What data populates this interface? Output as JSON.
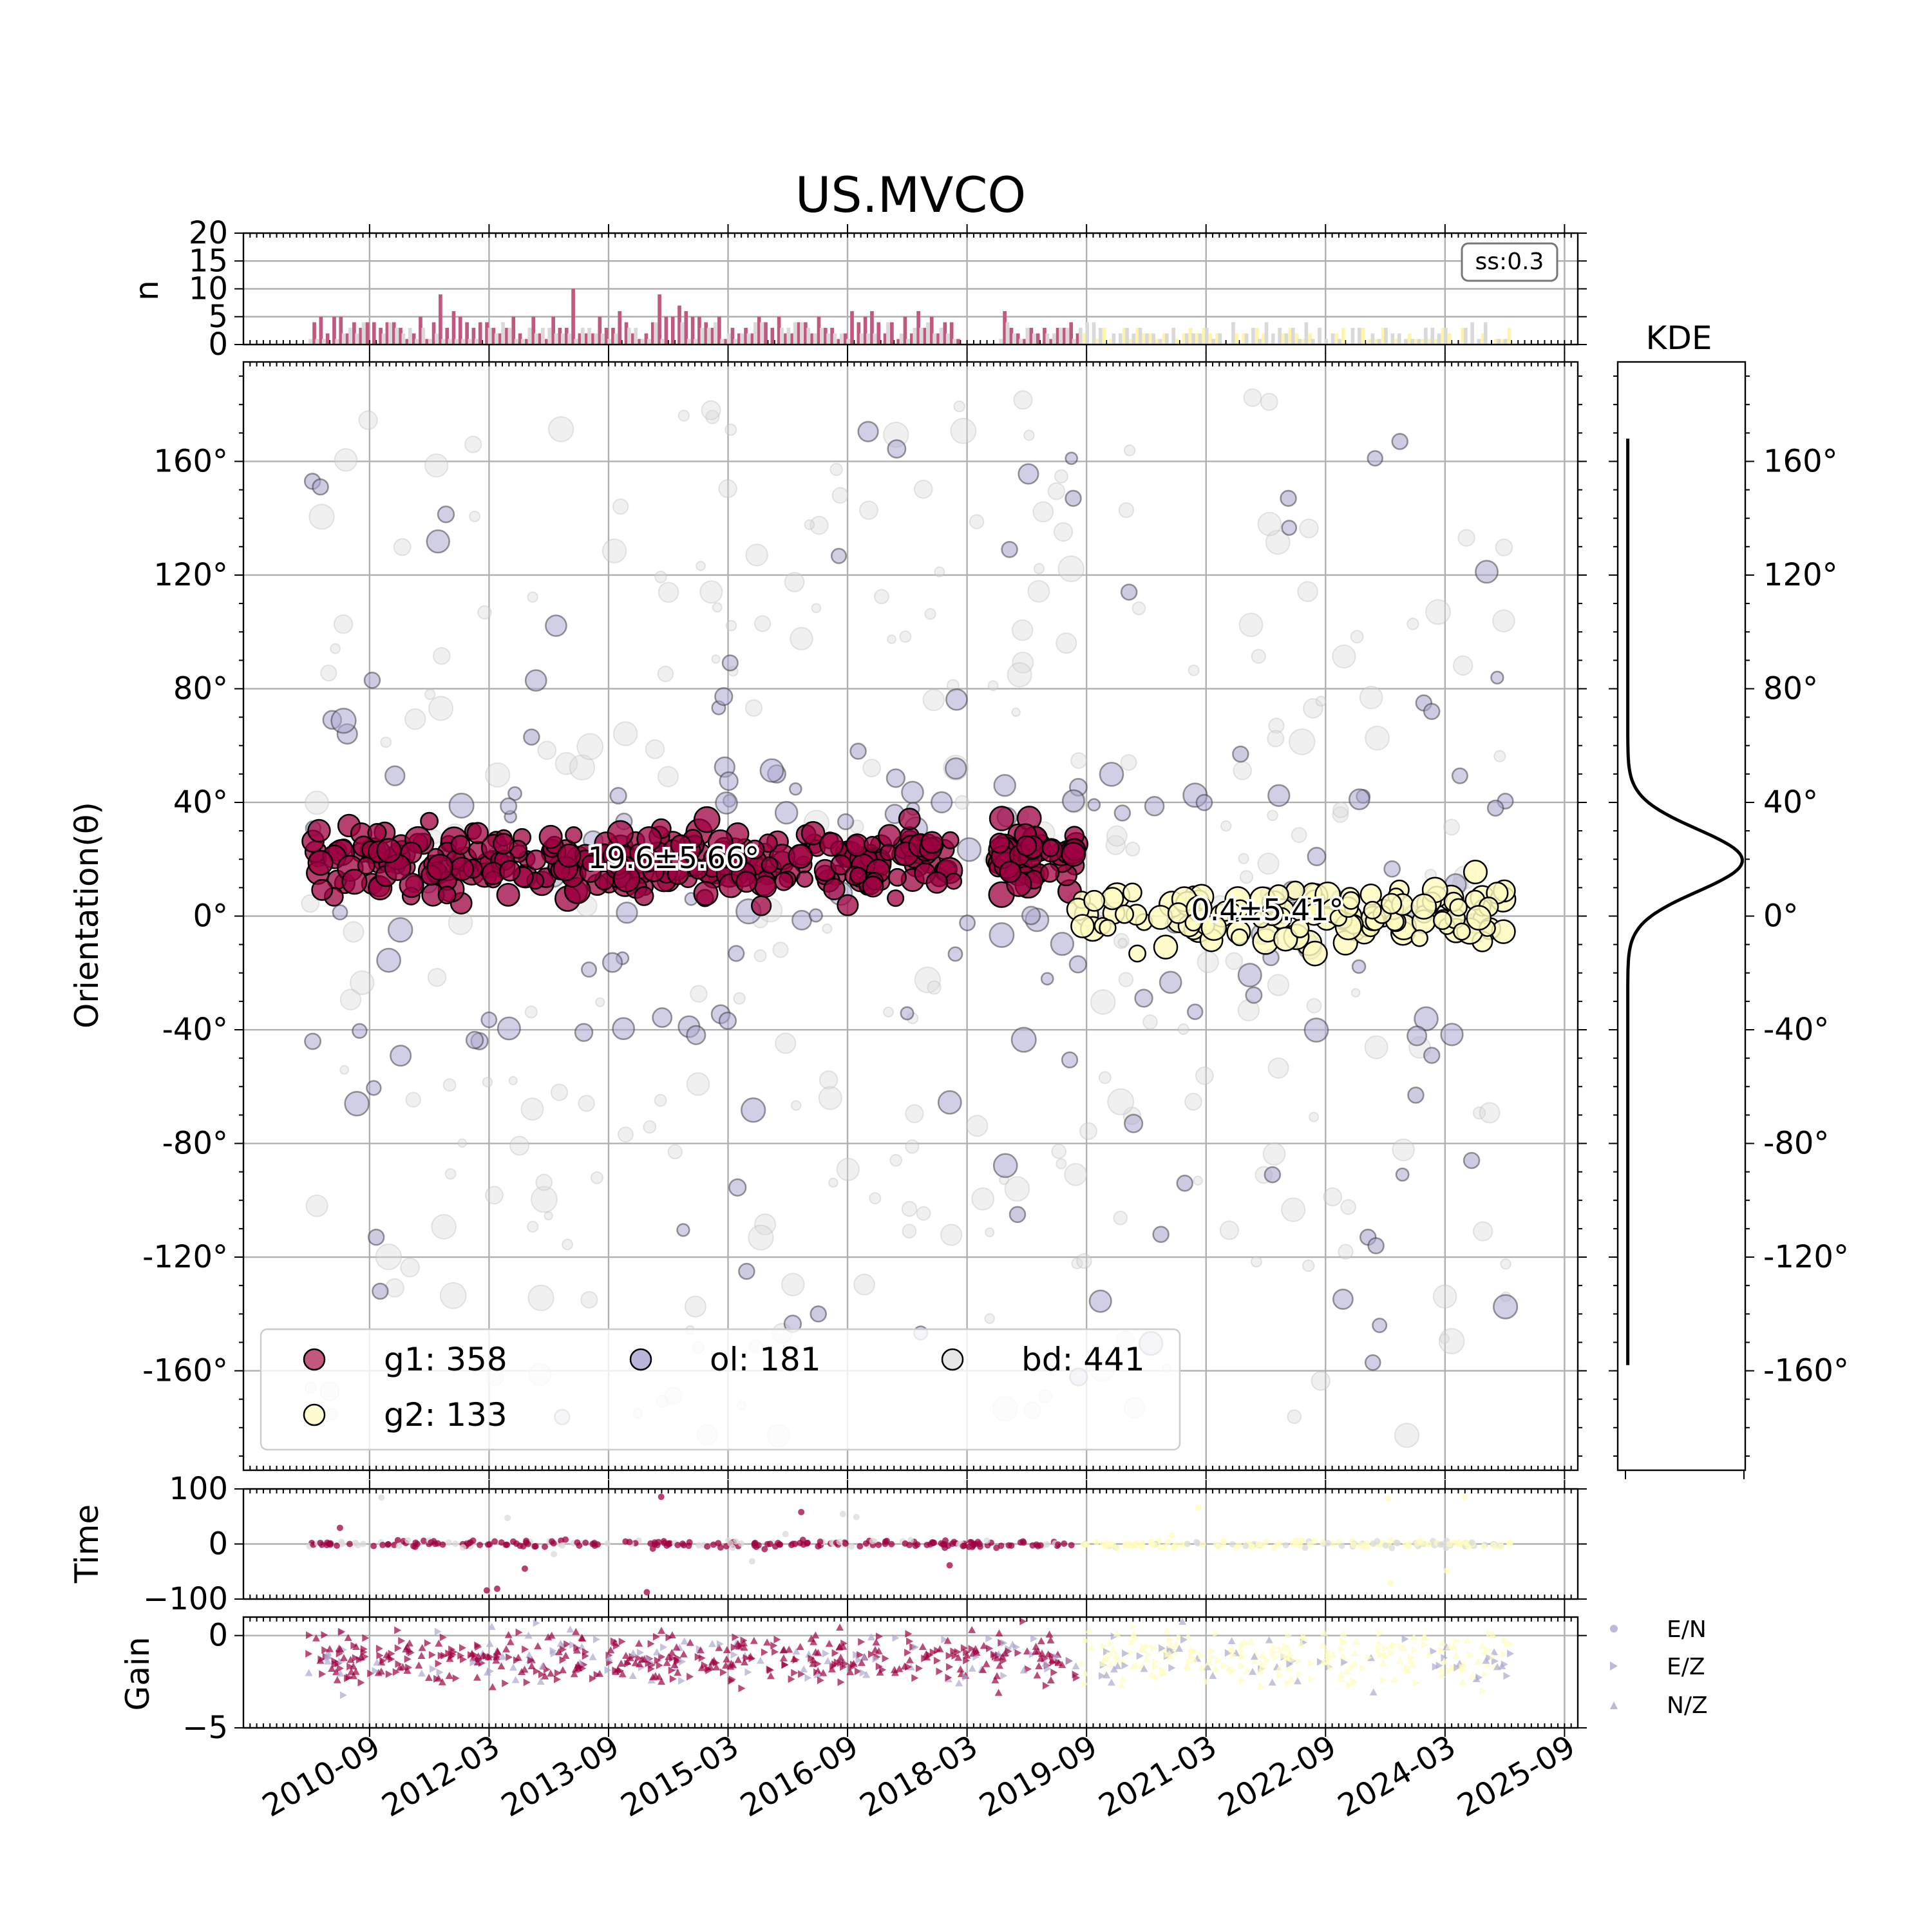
{
  "chart_data": {
    "type": "scatter",
    "title": "US.MVCO",
    "colors": {
      "g1": "#9e0142",
      "g2": "#fffcc0",
      "ol": "#aba8cf",
      "bd": "#d9d9d9"
    },
    "x_ticks": [
      "2010-09",
      "2012-03",
      "2013-09",
      "2015-03",
      "2016-09",
      "2018-03",
      "2019-09",
      "2021-03",
      "2022-09",
      "2024-03",
      "2025-09"
    ],
    "xlim": [
      "2009-02",
      "2025-11"
    ],
    "main": {
      "ylabel": "Orientation(θ)",
      "ylim": [
        -195,
        195
      ],
      "y_ticks": [
        "160°",
        "120°",
        "80°",
        "40°",
        "0°",
        "-40°",
        "-80°",
        "-120°",
        "-160°"
      ],
      "y_tick_values": [
        160,
        120,
        80,
        40,
        0,
        -40,
        -80,
        -120,
        -160
      ],
      "annotations": [
        {
          "text": "19.6±5.66°",
          "x": "2014-01",
          "y": 20
        },
        {
          "text": "0.4±5.41°",
          "x": "2021-11",
          "y": 1
        }
      ],
      "groups": [
        {
          "id": "g1",
          "period": [
            "2009-11",
            "2019-08"
          ],
          "mean": 19.6,
          "sd": 5.66
        },
        {
          "id": "g2",
          "period": [
            "2019-08",
            "2024-12"
          ],
          "mean": 0.4,
          "sd": 5.41
        }
      ],
      "outliers_sample": [
        [
          2009.95,
          153
        ],
        [
          2010.05,
          151
        ],
        [
          2010.7,
          83
        ],
        [
          2010.75,
          -113
        ],
        [
          2010.8,
          -132
        ],
        [
          2012.7,
          63
        ],
        [
          2015.4,
          -125
        ],
        [
          2016.3,
          -140
        ],
        [
          2016.8,
          58
        ],
        [
          2018.7,
          129
        ],
        [
          2018.8,
          -105
        ],
        [
          2019.5,
          147
        ],
        [
          2020.2,
          114
        ],
        [
          2020.9,
          -94
        ],
        [
          2020.6,
          -112
        ],
        [
          2021.6,
          57
        ],
        [
          2022.2,
          147
        ],
        [
          2022.0,
          -91
        ],
        [
          2023.6,
          167
        ],
        [
          2023.2,
          -113
        ],
        [
          2023.3,
          -116
        ],
        [
          2023.9,
          75
        ],
        [
          2024.0,
          72
        ],
        [
          2024.5,
          -86
        ],
        [
          2023.8,
          -63
        ],
        [
          2024.0,
          -49
        ],
        [
          2024.8,
          38
        ]
      ]
    },
    "histogram": {
      "ylabel": "n",
      "y_ticks": [
        "0",
        "5",
        "10",
        "15",
        "20"
      ],
      "ylim": [
        0,
        20
      ],
      "badge": "ss:0.3"
    },
    "kde": {
      "title": "KDE",
      "peak": 19.6,
      "sd": 11,
      "support": [
        -158,
        168
      ]
    },
    "time_panel": {
      "ylabel": "Time",
      "y_ticks": [
        "100",
        "0",
        "−100"
      ],
      "ylim": [
        -100,
        100
      ]
    },
    "gain_panel": {
      "ylabel": "Gain",
      "y_ticks": [
        "0",
        "−5"
      ],
      "ylim": [
        -5,
        1
      ]
    },
    "legend": [
      {
        "label": "g1: 358",
        "group": "g1"
      },
      {
        "label": "ol: 181",
        "group": "ol"
      },
      {
        "label": "bd: 441",
        "group": "bd"
      },
      {
        "label": "g2: 133",
        "group": "g2"
      }
    ],
    "marker_legend": [
      {
        "label": "E/N",
        "marker": "circle"
      },
      {
        "label": "E/Z",
        "marker": "triangle-right"
      },
      {
        "label": "N/Z",
        "marker": "triangle-up"
      }
    ]
  }
}
